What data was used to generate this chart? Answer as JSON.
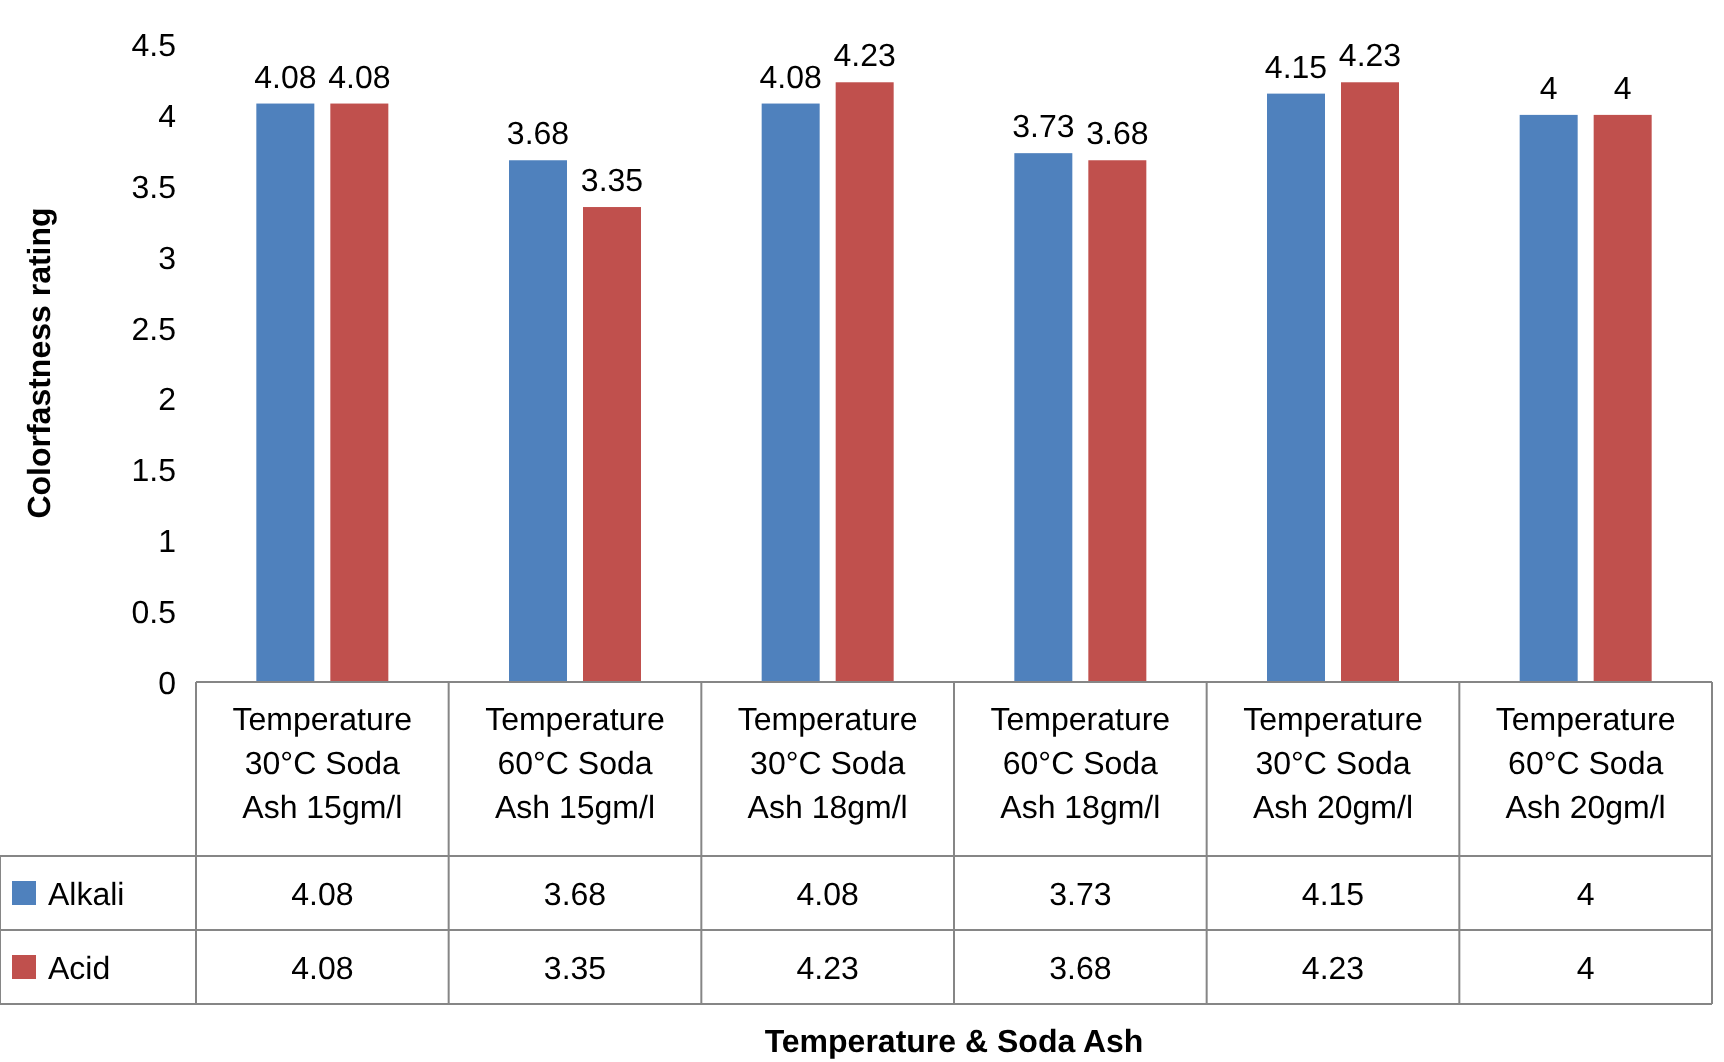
{
  "chart_data": {
    "type": "bar",
    "ylabel": "Colorfastness rating",
    "annotations": [
      "Temperature & Soda Ash",
      "4.08",
      "3.68",
      "4.08",
      "3.73",
      "4.15",
      "4",
      "4.08",
      "3.35",
      "4.23",
      "3.68",
      "4.23",
      "4"
    ],
    "categories": [
      "Temperature 30°C Soda Ash 15gm/l",
      "Temperature 60°C Soda Ash 15gm/l",
      "Temperature 30°C Soda Ash 18gm/l",
      "Temperature 60°C Soda Ash 18gm/l",
      "Temperature 30°C Soda Ash 20gm/l",
      "Temperature 60°C Soda Ash 20gm/l"
    ],
    "series": [
      {
        "name": "Alkali",
        "color": "#4f81bd",
        "values": [
          4.08,
          3.68,
          4.08,
          3.73,
          4.15,
          4
        ],
        "value_labels": [
          "4.08",
          "3.68",
          "4.08",
          "3.73",
          "4.15",
          "4"
        ]
      },
      {
        "name": "Acid",
        "color": "#c0504d",
        "values": [
          4.08,
          3.35,
          4.23,
          3.68,
          4.23,
          4
        ],
        "value_labels": [
          "4.08",
          "3.35",
          "4.23",
          "3.68",
          "4.23",
          "4"
        ]
      }
    ],
    "ylim": [
      0,
      4.5
    ],
    "yticks": [
      0,
      0.5,
      1,
      1.5,
      2,
      2.5,
      3,
      3.5,
      4,
      4.5
    ],
    "data_labels": true,
    "legend": "bottom left"
  }
}
